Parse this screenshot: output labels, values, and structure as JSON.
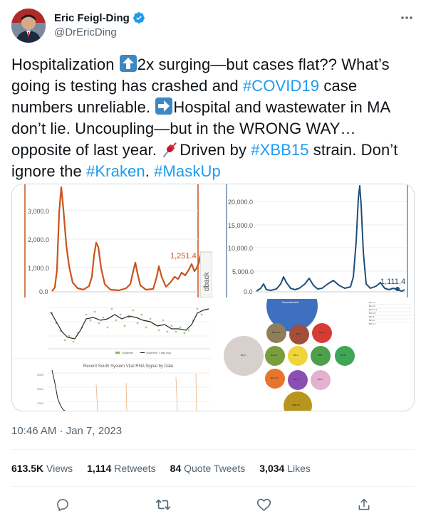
{
  "author": {
    "display_name": "Eric Feigl-Ding",
    "handle": "@DrEricDing"
  },
  "tweet": {
    "seg1": "Hospitalization ",
    "seg2": "2x surging—but cases flat?? What’s going is testing has crashed and ",
    "tag1": "#COVID19",
    "seg3": " case numbers unreliable. ",
    "seg4": "Hospital and wastewater in MA don’t lie. Uncoupling—but in the WRONG WAY… opposite of last year. ",
    "seg5": "Driven by ",
    "tag2": "#XBB15",
    "seg6": " strain. Don’t ignore the ",
    "tag3": "#Kraken",
    "seg7": ". ",
    "tag4": "#MaskUp"
  },
  "media": {
    "left_chart": {
      "y_ticks": [
        "3,000.0",
        "2,000.0",
        "1,000.0",
        "0.0"
      ],
      "last_label": "1,251.4",
      "side_text": "dback",
      "line_color": "#c9541b"
    },
    "right_chart": {
      "y_ticks": [
        "20,000.0",
        "15,000.0",
        "10,000.0",
        "5,000.0",
        "0.0"
      ],
      "last_label": "1,111.4",
      "line_color": "#1f4e79"
    },
    "wastewater": {
      "title": "Recent South System Viral RNA Signal by Date",
      "legend": [
        "Southern",
        "Southern 7 day avg"
      ]
    },
    "bubbles": {
      "top_label": "Nowcast/outlier",
      "legend_rows": [
        "BA.4.1",
        "BA.4.6",
        "BA.5.2.1",
        "BA.5.5",
        "BF.11",
        "BF.14",
        "BQ.1.1"
      ]
    }
  },
  "timestamp": "10:46 AM · Jan 7, 2023",
  "stats": [
    {
      "value": "613.5K",
      "label": "Views"
    },
    {
      "value": "1,114",
      "label": "Retweets"
    },
    {
      "value": "84",
      "label": "Quote Tweets"
    },
    {
      "value": "3,034",
      "label": "Likes"
    }
  ],
  "colors": {
    "link": "#1d9bf0",
    "verified": "#1d9bf0",
    "muted": "#536471"
  },
  "icons": [
    "verified-badge-icon",
    "more-icon",
    "up-arrow-emoji-icon",
    "right-arrow-emoji-icon",
    "pushpin-emoji-icon",
    "reply-icon",
    "retweet-icon",
    "like-icon",
    "share-icon"
  ]
}
